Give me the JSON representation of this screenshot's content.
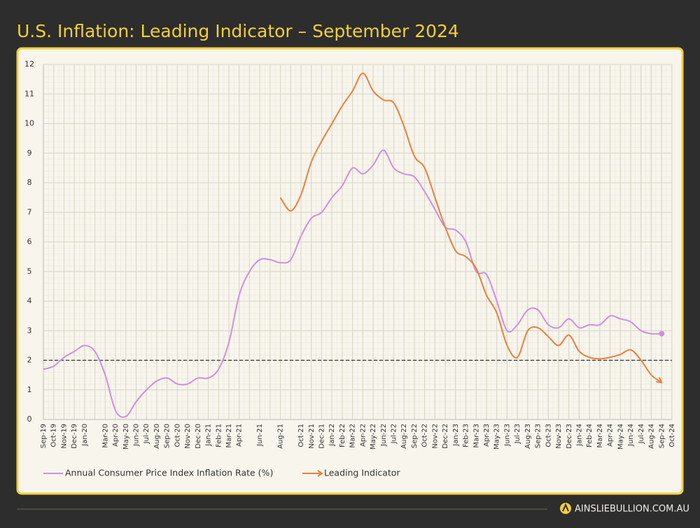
{
  "chart_data": {
    "type": "line",
    "title": "U.S. Inflation: Leading Indicator – September 2024",
    "categories": [
      "Sep-19",
      "Oct-19",
      "Nov-19",
      "Dec-19",
      "Jan-20",
      null,
      "Mar-20",
      "Apr-20",
      "May-20",
      "Jun-20",
      "Jul-20",
      "Aug-20",
      "Sep-20",
      "Oct-20",
      "Nov-20",
      "Dec-20",
      "Jan-21",
      "Feb-21",
      "Mar-21",
      "Apr-21",
      null,
      "Jun-21",
      null,
      "Aug-21",
      null,
      "Oct-21",
      "Nov-21",
      "Dec-21",
      "Jan-22",
      "Feb-22",
      "Mar-22",
      "Apr-22",
      "May-22",
      "Jun-22",
      "Jul-22",
      "Aug-22",
      "Sep-22",
      "Oct-22",
      "Nov-22",
      "Dec-22",
      "Jan-23",
      "Feb-23",
      "Mar-23",
      "Apr-23",
      "May-23",
      "Jun-23",
      "Jul-23",
      "Aug-23",
      "Sep-23",
      "Oct-23",
      "Nov-23",
      "Dec-23",
      "Jan-24",
      "Feb-24",
      "Mar-24",
      "Apr-24",
      "May-24",
      "Jun-24",
      "Jul-24",
      "Aug-24",
      "Sep-24",
      "Oct-24"
    ],
    "series": [
      {
        "name": "Annual Consumer Price Index Inflation Rate (%)",
        "color": "#cf8fe0",
        "values": [
          1.7,
          1.8,
          2.1,
          2.3,
          2.5,
          2.3,
          1.5,
          0.3,
          0.1,
          0.6,
          1.0,
          1.3,
          1.4,
          1.2,
          1.2,
          1.4,
          1.4,
          1.7,
          2.6,
          4.2,
          5.0,
          5.4,
          5.4,
          5.3,
          5.4,
          6.2,
          6.8,
          7.0,
          7.5,
          7.9,
          8.5,
          8.3,
          8.6,
          9.1,
          8.5,
          8.3,
          8.2,
          7.7,
          7.1,
          6.5,
          6.4,
          6.0,
          5.0,
          4.9,
          4.0,
          3.0,
          3.2,
          3.7,
          3.7,
          3.2,
          3.1,
          3.4,
          3.1,
          3.2,
          3.2,
          3.5,
          3.4,
          3.3,
          3.0,
          2.9,
          2.9,
          null
        ]
      },
      {
        "name": "Leading Indicator",
        "color": "#e8803c",
        "values": [
          null,
          null,
          null,
          null,
          null,
          null,
          null,
          null,
          null,
          null,
          null,
          null,
          null,
          null,
          null,
          null,
          null,
          null,
          null,
          null,
          null,
          null,
          null,
          7.5,
          7.05,
          7.6,
          8.7,
          9.4,
          10.0,
          10.6,
          11.1,
          11.7,
          11.1,
          10.8,
          10.7,
          9.9,
          8.9,
          8.5,
          7.5,
          6.5,
          5.7,
          5.5,
          5.1,
          4.2,
          3.6,
          2.5,
          2.1,
          3.0,
          3.1,
          2.8,
          2.5,
          2.85,
          2.3,
          2.1,
          2.05,
          2.1,
          2.2,
          2.35,
          2.0,
          1.5,
          1.25,
          null
        ]
      }
    ],
    "ylim": [
      0,
      12
    ],
    "yticks": [
      0,
      1,
      2,
      3,
      4,
      5,
      6,
      7,
      8,
      9,
      10,
      11,
      12
    ],
    "reference_line": 2,
    "grid": true,
    "source": "AINSLIEBULLION.COM.AU"
  }
}
